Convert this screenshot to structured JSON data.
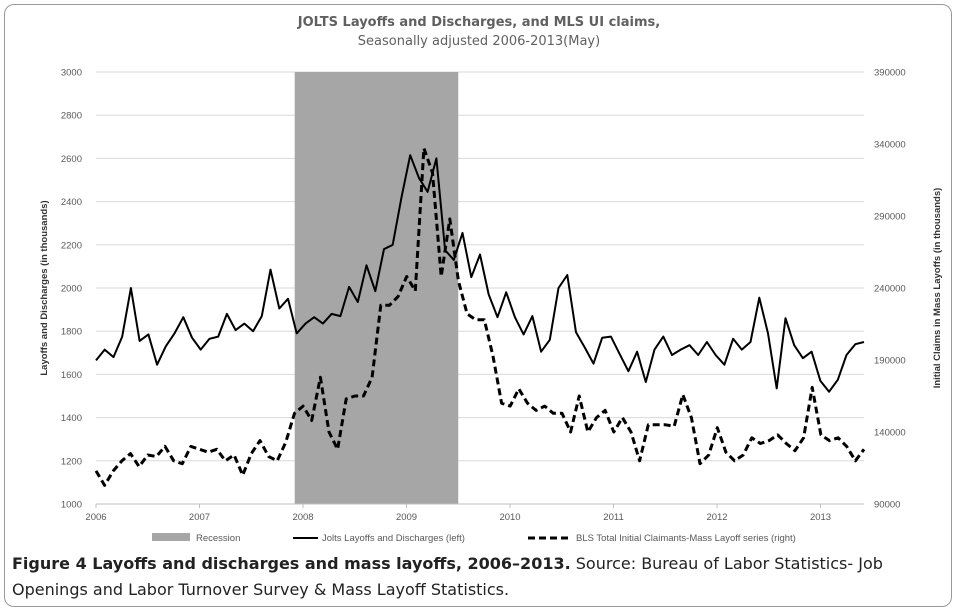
{
  "chart_data": {
    "type": "line",
    "title": "JOLTS Layoffs and Discharges, and MLS UI claims,",
    "subtitle": "Seasonally adjusted 2006-2013(May)",
    "xlabel": "",
    "ylabel_left": "Layoffs and Discharges (in thousands)",
    "ylabel_right": "Initial Claims in Mass Layoffs (in thousands)",
    "x_ticks": [
      "2006",
      "2007",
      "2008",
      "2009",
      "2010",
      "2011",
      "2012",
      "2013"
    ],
    "x_range": [
      2006.0,
      2013.42
    ],
    "ylim_left": [
      1000,
      3000
    ],
    "y_ticks_left": [
      "1000",
      "1200",
      "1400",
      "1600",
      "1800",
      "2000",
      "2200",
      "2400",
      "2600",
      "2800",
      "3000"
    ],
    "ylim_right": [
      90000,
      390000
    ],
    "y_ticks_right": [
      "90000",
      "140000",
      "190000",
      "240000",
      "290000",
      "340000",
      "390000"
    ],
    "grid": true,
    "legend_position": "bottom",
    "recession": {
      "label": "Recession",
      "start": 2007.92,
      "end": 2009.5,
      "color": "#a6a6a6"
    },
    "series": [
      {
        "name": "Jolts Layoffs and Discharges (left)",
        "axis": "left",
        "style": "solid",
        "color": "#000000",
        "values": [
          1665,
          1715,
          1680,
          1775,
          2000,
          1755,
          1785,
          1645,
          1730,
          1790,
          1865,
          1770,
          1715,
          1765,
          1775,
          1880,
          1805,
          1835,
          1800,
          1870,
          2085,
          1905,
          1950,
          1790,
          1835,
          1865,
          1835,
          1880,
          1870,
          2005,
          1935,
          2105,
          1985,
          2180,
          2200,
          2420,
          2615,
          2510,
          2445,
          2600,
          2175,
          2130,
          2255,
          2050,
          2155,
          1970,
          1865,
          1980,
          1865,
          1785,
          1870,
          1705,
          1760,
          2000,
          2060,
          1795,
          1725,
          1650,
          1770,
          1775,
          1695,
          1615,
          1705,
          1565,
          1715,
          1775,
          1690,
          1715,
          1735,
          1690,
          1750,
          1690,
          1645,
          1765,
          1715,
          1750,
          1955,
          1790,
          1535,
          1860,
          1735,
          1675,
          1705,
          1570,
          1520,
          1575,
          1690,
          1740,
          1750
        ]
      },
      {
        "name": "BLS Total Initial Claimants-Mass Layoff series (right)",
        "axis": "right",
        "style": "dashed",
        "color": "#000000",
        "values": [
          113000,
          103000,
          113000,
          120000,
          125000,
          116000,
          124000,
          123000,
          130000,
          120000,
          118000,
          130000,
          128000,
          126000,
          128000,
          120000,
          124000,
          110000,
          125000,
          134000,
          123000,
          120000,
          133000,
          153000,
          158000,
          148000,
          178000,
          140000,
          128000,
          163000,
          165000,
          165000,
          178000,
          228000,
          228000,
          234000,
          248000,
          238000,
          337000,
          320000,
          248000,
          288000,
          245000,
          222000,
          218000,
          218000,
          193000,
          160000,
          158000,
          170000,
          160000,
          155000,
          158000,
          153000,
          153000,
          140000,
          165000,
          140000,
          150000,
          155000,
          140000,
          150000,
          140000,
          120000,
          145000,
          145000,
          145000,
          144000,
          166000,
          150000,
          118000,
          124000,
          143000,
          126000,
          120000,
          124000,
          136000,
          132000,
          134000,
          138000,
          132000,
          127000,
          136000,
          171000,
          138000,
          134000,
          136000,
          130000,
          120000,
          128000
        ]
      }
    ]
  },
  "caption": {
    "label": "Figure 4 Layoffs and discharges and mass layoffs, 2006–2013.",
    "text": " Source: Bureau of Labor Statistics- Job Openings and Labor Turnover Survey & Mass Layoff Statistics."
  }
}
